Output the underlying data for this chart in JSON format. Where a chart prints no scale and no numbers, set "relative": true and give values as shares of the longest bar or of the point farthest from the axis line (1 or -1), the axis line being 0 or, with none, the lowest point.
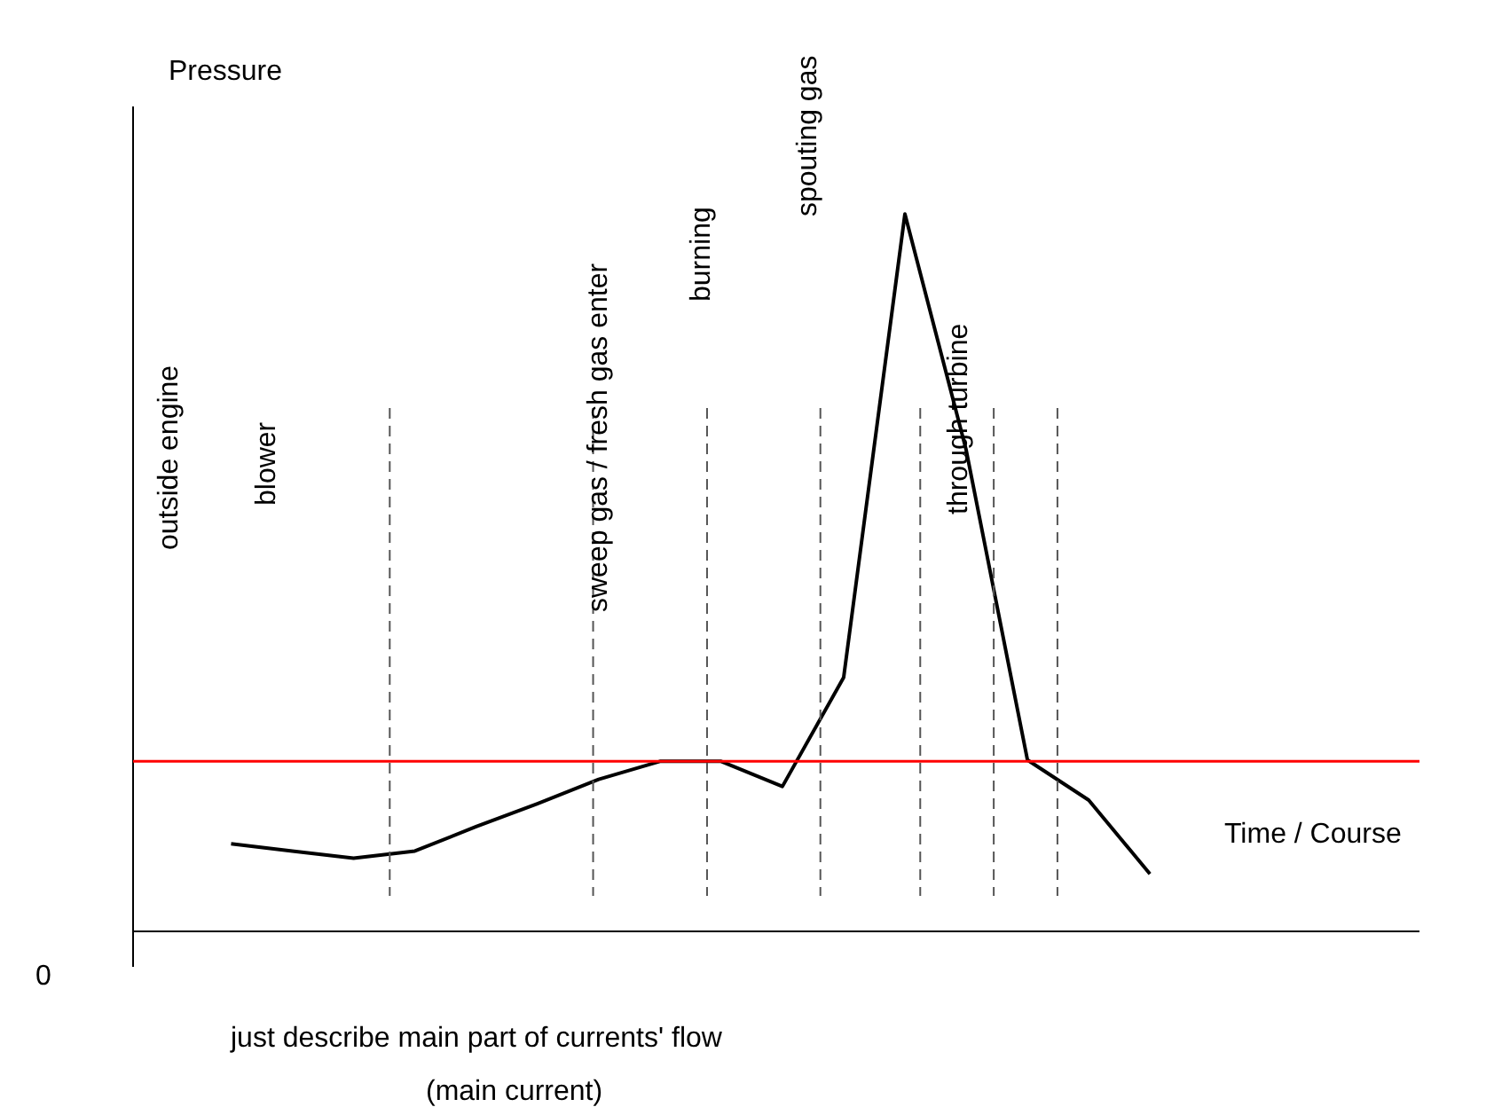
{
  "chart_data": {
    "type": "line",
    "relative": true,
    "ylabel": "Pressure",
    "xlabel": "Time / Course",
    "categories": [
      null,
      null,
      null,
      null,
      null,
      null,
      null,
      null,
      null,
      null,
      null,
      null,
      null,
      null,
      null,
      null
    ],
    "series": [
      {
        "color": "#000000",
        "values": [
          0.122,
          0.112,
          0.102,
          0.112,
          0.146,
          0.178,
          0.212,
          0.237,
          0.237,
          0.202,
          0.354,
          1,
          0.671,
          0.239,
          0.183,
          0.08
        ]
      }
    ],
    "ref_lines": [
      {
        "axis": "y",
        "value": 0.237,
        "color": "#ff0000",
        "line_style": "solid"
      }
    ],
    "annotations": [
      "0",
      "outside engine",
      "blower",
      "sweep gas / fresh gas enter",
      "burning",
      "spouting gas",
      "through turbine",
      "just describe main part of currents' flow",
      "(main current)"
    ],
    "grid": false,
    "marker": "none",
    "line_style": "solid"
  }
}
